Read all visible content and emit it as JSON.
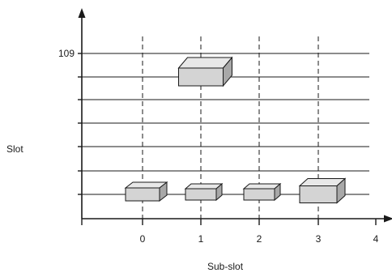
{
  "diagram": {
    "x_axis_label": "Sub-slot",
    "y_axis_label": "Slot",
    "x_tick_labels": [
      "0",
      "1",
      "2",
      "3",
      "4"
    ],
    "y_tick_labels": [
      {
        "label": "109",
        "level": 6
      }
    ],
    "y_tick_count": 7,
    "blocks": [
      {
        "subslot": 1,
        "slot": 109,
        "size": "large"
      },
      {
        "subslot": 0,
        "slot": 0,
        "size": "medium"
      },
      {
        "subslot": 1,
        "slot": 0,
        "size": "small"
      },
      {
        "subslot": 2,
        "slot": 0,
        "size": "small"
      },
      {
        "subslot": 3,
        "slot": 0,
        "size": "medium-tall"
      }
    ],
    "colors": {
      "block_front": "#d4d4d4",
      "block_top": "#e8e8e8",
      "block_side": "#a8a8a8",
      "stroke": "#1a1a1a"
    }
  }
}
